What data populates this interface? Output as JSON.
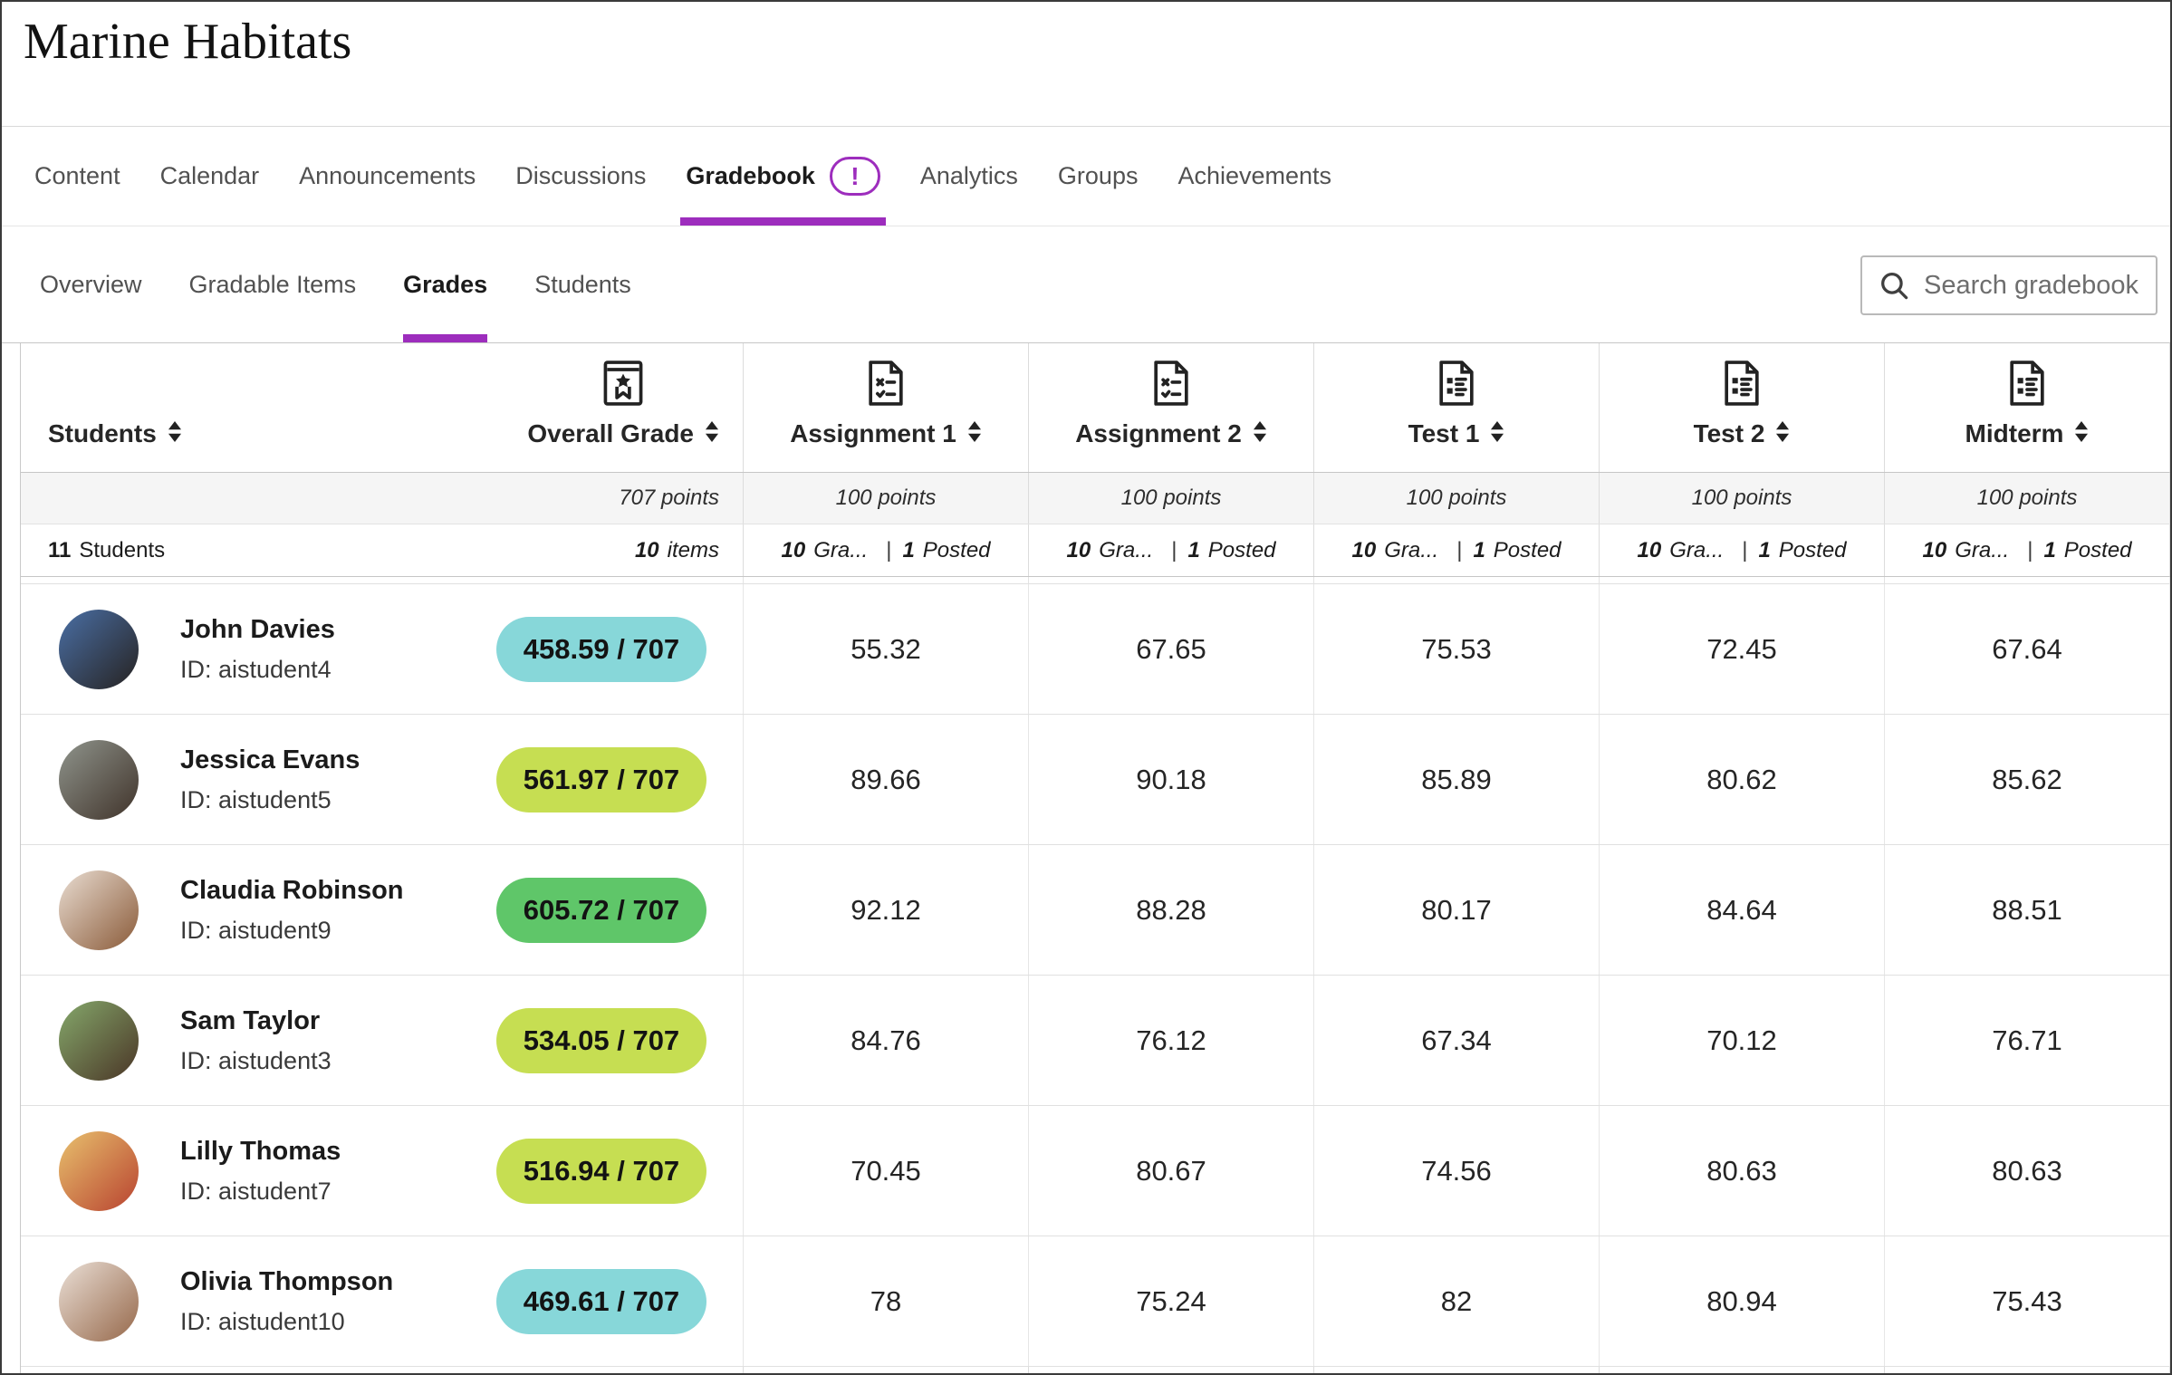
{
  "page": {
    "title": "Marine Habitats"
  },
  "main_nav": {
    "items": [
      {
        "label": "Content",
        "active": false,
        "badge": null
      },
      {
        "label": "Calendar",
        "active": false,
        "badge": null
      },
      {
        "label": "Announcements",
        "active": false,
        "badge": null
      },
      {
        "label": "Discussions",
        "active": false,
        "badge": null
      },
      {
        "label": "Gradebook",
        "active": true,
        "badge": "!"
      },
      {
        "label": "Analytics",
        "active": false,
        "badge": null
      },
      {
        "label": "Groups",
        "active": false,
        "badge": null
      },
      {
        "label": "Achievements",
        "active": false,
        "badge": null
      }
    ]
  },
  "sub_nav": {
    "items": [
      {
        "label": "Overview",
        "active": false
      },
      {
        "label": "Gradable Items",
        "active": false
      },
      {
        "label": "Grades",
        "active": true
      },
      {
        "label": "Students",
        "active": false
      }
    ]
  },
  "search": {
    "placeholder": "Search gradebook"
  },
  "colors": {
    "accent_purple": "#9D2DBD",
    "pill_teal": "#87D7D9",
    "pill_yellow_green": "#C6DE52",
    "pill_green": "#5FC669"
  },
  "table": {
    "students_column": {
      "header_label": "Students",
      "count_value": "11",
      "count_label": "Students"
    },
    "overall_column": {
      "header_label": "Overall Grade",
      "points": "707 points",
      "items_value": "10",
      "items_label": "items"
    },
    "grade_columns": [
      {
        "label": "Assignment 1",
        "icon": "assignment",
        "points": "100 points",
        "graded_value": "10",
        "graded_label": "Gra...",
        "posted_value": "1",
        "posted_label": "Posted"
      },
      {
        "label": "Assignment 2",
        "icon": "assignment",
        "points": "100 points",
        "graded_value": "10",
        "graded_label": "Gra...",
        "posted_value": "1",
        "posted_label": "Posted"
      },
      {
        "label": "Test 1",
        "icon": "test",
        "points": "100 points",
        "graded_value": "10",
        "graded_label": "Gra...",
        "posted_value": "1",
        "posted_label": "Posted"
      },
      {
        "label": "Test 2",
        "icon": "test",
        "points": "100 points",
        "graded_value": "10",
        "graded_label": "Gra...",
        "posted_value": "1",
        "posted_label": "Posted"
      },
      {
        "label": "Midterm",
        "icon": "test",
        "points": "100 points",
        "graded_value": "10",
        "graded_label": "Gra...",
        "posted_value": "1",
        "posted_label": "Posted"
      }
    ],
    "rows": [
      {
        "name": "John Davies",
        "student_id": "ID: aistudent4",
        "overall": "458.59 / 707",
        "pill_color": "#87D7D9",
        "avatar_colors": [
          "#4a6fa5",
          "#262220"
        ],
        "grades": [
          "55.32",
          "67.65",
          "75.53",
          "72.45",
          "67.64"
        ]
      },
      {
        "name": "Jessica Evans",
        "student_id": "ID: aistudent5",
        "overall": "561.97 / 707",
        "pill_color": "#C6DE52",
        "avatar_colors": [
          "#8f948c",
          "#40332a"
        ],
        "grades": [
          "89.66",
          "90.18",
          "85.89",
          "80.62",
          "85.62"
        ]
      },
      {
        "name": "Claudia Robinson",
        "student_id": "ID: aistudent9",
        "overall": "605.72 / 707",
        "pill_color": "#5FC669",
        "avatar_colors": [
          "#e9ddd2",
          "#8a5a38"
        ],
        "grades": [
          "92.12",
          "88.28",
          "80.17",
          "84.64",
          "88.51"
        ]
      },
      {
        "name": "Sam Taylor",
        "student_id": "ID: aistudent3",
        "overall": "534.05 / 707",
        "pill_color": "#C6DE52",
        "avatar_colors": [
          "#85a86b",
          "#4a3526"
        ],
        "grades": [
          "84.76",
          "76.12",
          "67.34",
          "70.12",
          "76.71"
        ]
      },
      {
        "name": "Lilly Thomas",
        "student_id": "ID: aistudent7",
        "overall": "516.94 / 707",
        "pill_color": "#C6DE52",
        "avatar_colors": [
          "#e8c16e",
          "#b8422f"
        ],
        "grades": [
          "70.45",
          "80.67",
          "74.56",
          "80.63",
          "80.63"
        ]
      },
      {
        "name": "Olivia Thompson",
        "student_id": "ID: aistudent10",
        "overall": "469.61 / 707",
        "pill_color": "#87D7D9",
        "avatar_colors": [
          "#eadfd6",
          "#96684a"
        ],
        "grades": [
          "78",
          "75.24",
          "82",
          "80.94",
          "75.43"
        ]
      }
    ]
  }
}
